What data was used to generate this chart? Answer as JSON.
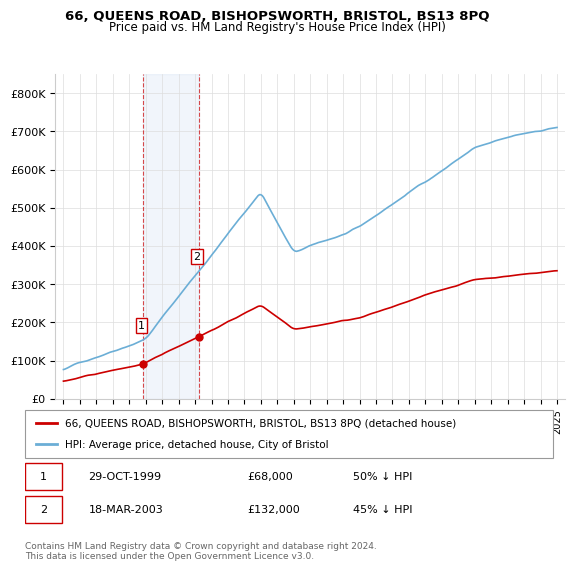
{
  "title": "66, QUEENS ROAD, BISHOPSWORTH, BRISTOL, BS13 8PQ",
  "subtitle": "Price paid vs. HM Land Registry's House Price Index (HPI)",
  "ylabel_color": "#000000",
  "background_color": "#ffffff",
  "plot_background": "#ffffff",
  "grid_color": "#dddddd",
  "hpi_color": "#6baed6",
  "price_color": "#cc0000",
  "highlight_color": "#c8d8f0",
  "purchase1": {
    "date": "29-OCT-1999",
    "price": 68000,
    "pct": "50% ↓ HPI",
    "x": 1999.83
  },
  "purchase2": {
    "date": "18-MAR-2003",
    "price": 132000,
    "pct": "45% ↓ HPI",
    "x": 2003.21
  },
  "legend_label_price": "66, QUEENS ROAD, BISHOPSWORTH, BRISTOL, BS13 8PQ (detached house)",
  "legend_label_hpi": "HPI: Average price, detached house, City of Bristol",
  "footnote": "Contains HM Land Registry data © Crown copyright and database right 2024.\nThis data is licensed under the Open Government Licence v3.0.",
  "ylim": [
    0,
    850000
  ],
  "yticks": [
    0,
    100000,
    200000,
    300000,
    400000,
    500000,
    600000,
    700000,
    800000
  ],
  "ytick_labels": [
    "£0",
    "£100K",
    "£200K",
    "£300K",
    "£400K",
    "£500K",
    "£600K",
    "£700K",
    "£800K"
  ],
  "xlim_start": 1994.5,
  "xlim_end": 2025.5
}
